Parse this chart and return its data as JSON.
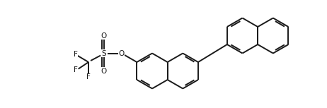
{
  "bg_color": "#ffffff",
  "line_color": "#1a1a1a",
  "line_width": 1.4,
  "figsize": [
    4.62,
    1.53
  ],
  "dpi": 100,
  "xlim": [
    0,
    9.24
  ],
  "ylim": [
    0,
    3.06
  ],
  "r": 0.48,
  "rot": 30,
  "fs": 7.5
}
